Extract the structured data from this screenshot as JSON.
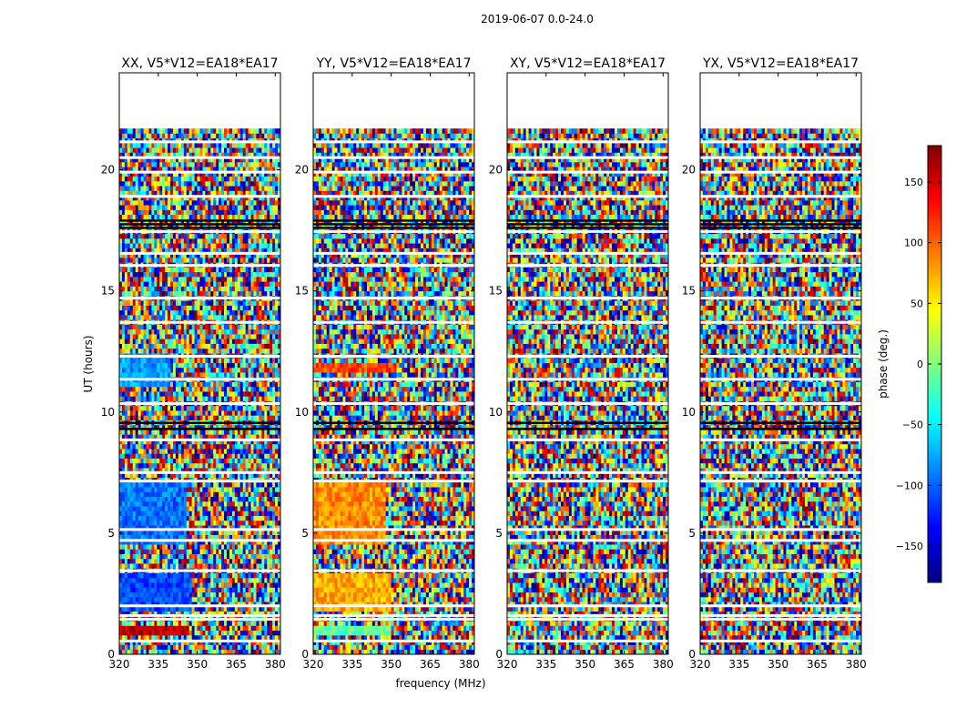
{
  "chart_data": {
    "type": "heatmap",
    "title": "2019-06-07 0.0-24.0",
    "xlabel": "frequency (MHz)",
    "ylabel": "UT (hours)",
    "xlim": [
      320,
      382
    ],
    "ylim": [
      0,
      24
    ],
    "x_ticks": [
      "320",
      "335",
      "350",
      "365",
      "380"
    ],
    "x_tick_values": [
      320,
      335,
      350,
      365,
      380
    ],
    "y_ticks": [
      "0",
      "5",
      "10",
      "15",
      "20"
    ],
    "y_tick_values": [
      0,
      5,
      10,
      15,
      20
    ],
    "colorbar": {
      "label": "phase (deg.)",
      "range": [
        -180,
        180
      ],
      "ticks": [
        "−150",
        "−100",
        "−50",
        "0",
        "50",
        "100",
        "150"
      ],
      "tick_values": [
        -150,
        -100,
        -50,
        0,
        50,
        100,
        150
      ],
      "colormap": "jet"
    },
    "data_extent_hours": [
      0,
      21.7
    ],
    "flagged_rows_hours": [
      0.55,
      1.45,
      1.6,
      2.0,
      3.45,
      4.7,
      5.15,
      7.15,
      7.5,
      8.85,
      10.35,
      11.35,
      12.3,
      13.7,
      14.7,
      16.05,
      16.55,
      17.45,
      18.9,
      19.9,
      20.5,
      21.15
    ],
    "dark_rows_hours": [
      9.3,
      9.55,
      17.6,
      17.75,
      17.9
    ],
    "panels": [
      {
        "title": "XX, V5*V12=EA18*EA17",
        "pattern": "XX"
      },
      {
        "title": "YY, V5*V12=EA18*EA17",
        "pattern": "YY"
      },
      {
        "title": "XY, V5*V12=EA18*EA17",
        "pattern": "XY"
      },
      {
        "title": "YX, V5*V12=EA18*EA17",
        "pattern": "YX"
      }
    ],
    "coherent_blocks": [
      {
        "panel": "XX",
        "hours": [
          0.8,
          1.2
        ],
        "freq_mhz": [
          320,
          347
        ],
        "phase": 160
      },
      {
        "panel": "XX",
        "hours": [
          1.75,
          3.35
        ],
        "freq_mhz": [
          320,
          348
        ],
        "phase": -110
      },
      {
        "panel": "XX",
        "hours": [
          4.6,
          7.1
        ],
        "freq_mhz": [
          320,
          346
        ],
        "phase": -95
      },
      {
        "panel": "XX",
        "hours": [
          11.0,
          12.4
        ],
        "freq_mhz": [
          320,
          340
        ],
        "phase": -80
      },
      {
        "panel": "YY",
        "hours": [
          0.8,
          1.2
        ],
        "freq_mhz": [
          320,
          350
        ],
        "phase": -10
      },
      {
        "panel": "YY",
        "hours": [
          1.75,
          3.35
        ],
        "freq_mhz": [
          320,
          350
        ],
        "phase": 75
      },
      {
        "panel": "YY",
        "hours": [
          4.6,
          7.1
        ],
        "freq_mhz": [
          320,
          348
        ],
        "phase": 85
      },
      {
        "panel": "YY",
        "hours": [
          11.7,
          12.1
        ],
        "freq_mhz": [
          320,
          352
        ],
        "phase": 110
      }
    ]
  }
}
